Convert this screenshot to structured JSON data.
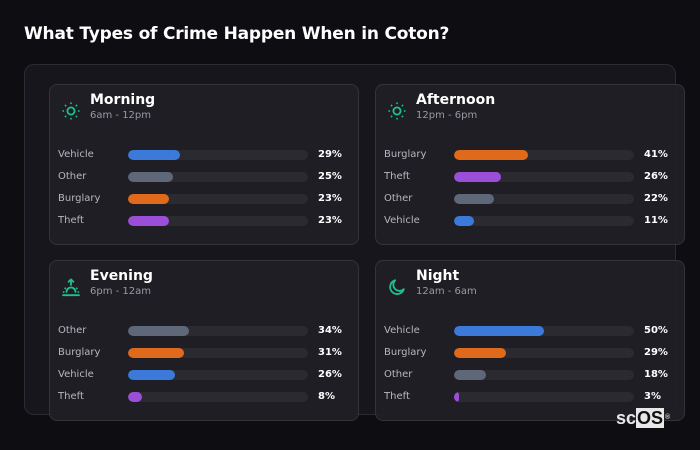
{
  "title": "What Types of Crime Happen When in Coton?",
  "brand": {
    "prefix": "sc",
    "highlight": "OS",
    "mark": "®"
  },
  "colors": {
    "Vehicle": "#3b7ad9",
    "Other": "#5f6878",
    "Burglary": "#e06a1c",
    "Theft": "#9b4fd8",
    "icon": "#1fc08e"
  },
  "cards": [
    {
      "id": "morning",
      "title": "Morning",
      "subtitle": "6am - 12pm",
      "icon": "sun-icon",
      "rows": [
        {
          "label": "Vehicle",
          "value": 29,
          "display": "29%"
        },
        {
          "label": "Other",
          "value": 25,
          "display": "25%"
        },
        {
          "label": "Burglary",
          "value": 23,
          "display": "23%"
        },
        {
          "label": "Theft",
          "value": 23,
          "display": "23%"
        }
      ]
    },
    {
      "id": "afternoon",
      "title": "Afternoon",
      "subtitle": "12pm - 6pm",
      "icon": "sun-icon",
      "rows": [
        {
          "label": "Burglary",
          "value": 41,
          "display": "41%"
        },
        {
          "label": "Theft",
          "value": 26,
          "display": "26%"
        },
        {
          "label": "Other",
          "value": 22,
          "display": "22%"
        },
        {
          "label": "Vehicle",
          "value": 11,
          "display": "11%"
        }
      ]
    },
    {
      "id": "evening",
      "title": "Evening",
      "subtitle": "6pm - 12am",
      "icon": "sunset-icon",
      "rows": [
        {
          "label": "Other",
          "value": 34,
          "display": "34%"
        },
        {
          "label": "Burglary",
          "value": 31,
          "display": "31%"
        },
        {
          "label": "Vehicle",
          "value": 26,
          "display": "26%"
        },
        {
          "label": "Theft",
          "value": 8,
          "display": "8%"
        }
      ]
    },
    {
      "id": "night",
      "title": "Night",
      "subtitle": "12am - 6am",
      "icon": "moon-icon",
      "rows": [
        {
          "label": "Vehicle",
          "value": 50,
          "display": "50%"
        },
        {
          "label": "Burglary",
          "value": 29,
          "display": "29%"
        },
        {
          "label": "Other",
          "value": 18,
          "display": "18%"
        },
        {
          "label": "Theft",
          "value": 3,
          "display": "3%"
        }
      ]
    }
  ],
  "chart_data": [
    {
      "type": "bar",
      "orientation": "horizontal",
      "title": "Morning",
      "subtitle": "6am - 12pm",
      "categories": [
        "Vehicle",
        "Other",
        "Burglary",
        "Theft"
      ],
      "values": [
        29,
        25,
        23,
        23
      ],
      "unit": "%",
      "xlim": [
        0,
        100
      ]
    },
    {
      "type": "bar",
      "orientation": "horizontal",
      "title": "Afternoon",
      "subtitle": "12pm - 6pm",
      "categories": [
        "Burglary",
        "Theft",
        "Other",
        "Vehicle"
      ],
      "values": [
        41,
        26,
        22,
        11
      ],
      "unit": "%",
      "xlim": [
        0,
        100
      ]
    },
    {
      "type": "bar",
      "orientation": "horizontal",
      "title": "Evening",
      "subtitle": "6pm - 12am",
      "categories": [
        "Other",
        "Burglary",
        "Vehicle",
        "Theft"
      ],
      "values": [
        34,
        31,
        26,
        8
      ],
      "unit": "%",
      "xlim": [
        0,
        100
      ]
    },
    {
      "type": "bar",
      "orientation": "horizontal",
      "title": "Night",
      "subtitle": "12am - 6am",
      "categories": [
        "Vehicle",
        "Burglary",
        "Other",
        "Theft"
      ],
      "values": [
        50,
        29,
        18,
        3
      ],
      "unit": "%",
      "xlim": [
        0,
        100
      ]
    }
  ]
}
